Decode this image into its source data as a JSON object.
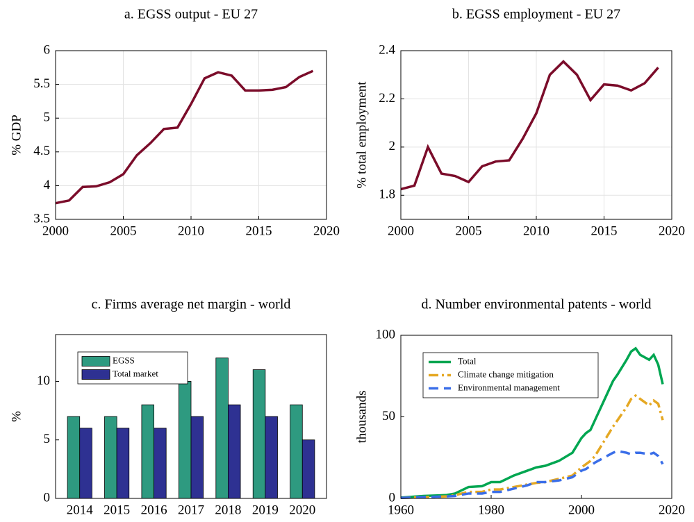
{
  "chart_data": [
    {
      "type": "line",
      "title": "a. EGSS output - EU 27",
      "y_label": "% GDP",
      "x": [
        2000,
        2001,
        2002,
        2003,
        2004,
        2005,
        2006,
        2007,
        2008,
        2009,
        2010,
        2011,
        2012,
        2013,
        2014,
        2015,
        2016,
        2017,
        2018,
        2019
      ],
      "series": [
        {
          "name": "EGSS output",
          "color": "#7b0c2a",
          "style": "solid",
          "values": [
            3.74,
            3.78,
            3.98,
            3.99,
            4.05,
            4.17,
            4.45,
            4.63,
            4.84,
            4.86,
            5.21,
            5.59,
            5.68,
            5.63,
            5.41,
            5.41,
            5.42,
            5.46,
            5.61,
            5.7
          ]
        }
      ],
      "xlim": [
        2000,
        2020
      ],
      "xticks": [
        2000,
        2005,
        2010,
        2015,
        2020
      ],
      "ylim": [
        3.5,
        6
      ],
      "yticks": [
        3.5,
        4,
        4.5,
        5,
        5.5,
        6
      ],
      "grid": true
    },
    {
      "type": "line",
      "title": "b. EGSS employment - EU 27",
      "y_label": "% total employment",
      "x": [
        2000,
        2001,
        2002,
        2003,
        2004,
        2005,
        2006,
        2007,
        2008,
        2009,
        2010,
        2011,
        2012,
        2013,
        2014,
        2015,
        2016,
        2017,
        2018,
        2019
      ],
      "series": [
        {
          "name": "EGSS employment",
          "color": "#7b0c2a",
          "style": "solid",
          "values": [
            1.825,
            1.84,
            2.0,
            1.89,
            1.88,
            1.855,
            1.92,
            1.94,
            1.945,
            2.035,
            2.14,
            2.3,
            2.355,
            2.3,
            2.195,
            2.26,
            2.255,
            2.235,
            2.265,
            2.33
          ]
        }
      ],
      "xlim": [
        2000,
        2020
      ],
      "xticks": [
        2000,
        2005,
        2010,
        2015,
        2020
      ],
      "ylim": [
        1.7,
        2.4
      ],
      "yticks": [
        1.8,
        2,
        2.2,
        2.4
      ],
      "grid": true
    },
    {
      "type": "bar",
      "title": "c. Firms average net margin - world",
      "y_label": "%",
      "categories": [
        "2014",
        "2015",
        "2016",
        "2017",
        "2018",
        "2019",
        "2020"
      ],
      "series": [
        {
          "name": "EGSS",
          "color": "#2e9a80",
          "values": [
            7,
            7,
            8,
            10,
            12,
            11,
            8
          ]
        },
        {
          "name": "Total market",
          "color": "#2e3192",
          "values": [
            6,
            6,
            6,
            7,
            8,
            7,
            5
          ]
        }
      ],
      "ylim": [
        0,
        14
      ],
      "yticks": [
        0,
        5,
        10
      ],
      "grid": false,
      "legend": "upper left"
    },
    {
      "type": "line",
      "title": "d. Number environmental patents - world",
      "y_label": "thousands",
      "x": [
        1960,
        1965,
        1970,
        1972,
        1975,
        1978,
        1980,
        1982,
        1985,
        1988,
        1990,
        1992,
        1995,
        1998,
        2000,
        2001,
        2002,
        2003,
        2005,
        2007,
        2008,
        2010,
        2011,
        2012,
        2013,
        2015,
        2016,
        2017,
        2018
      ],
      "series": [
        {
          "name": "Total",
          "color": "#00a651",
          "style": "solid",
          "values": [
            0.5,
            1.5,
            2,
            3,
            7,
            7.5,
            10,
            10,
            14,
            17,
            19,
            20,
            23,
            28,
            37,
            40,
            42,
            48,
            60,
            72,
            76,
            85,
            90,
            92,
            88,
            85,
            88,
            82,
            70
          ]
        },
        {
          "name": "Climate change mitigation",
          "color": "#e5a823",
          "style": "dashdot",
          "values": [
            0.3,
            0.7,
            1.2,
            2,
            4,
            4,
            5.5,
            5.5,
            7,
            8.5,
            9.5,
            10,
            12,
            14,
            19,
            21,
            23,
            26,
            35,
            44,
            48,
            56,
            61,
            63,
            61,
            57,
            60,
            58,
            48
          ]
        },
        {
          "name": "Environmental management",
          "color": "#3a6ee8",
          "style": "dashed",
          "values": [
            0.3,
            0.8,
            1.2,
            1.5,
            3,
            3,
            4,
            4,
            6,
            8,
            10,
            10,
            11,
            13,
            17,
            18,
            20,
            22,
            25,
            28,
            29,
            28,
            27,
            28,
            28,
            27,
            28,
            26,
            21
          ]
        }
      ],
      "xlim": [
        1960,
        2020
      ],
      "xticks": [
        1960,
        1980,
        2000,
        2020
      ],
      "ylim": [
        0,
        100
      ],
      "yticks": [
        0,
        50,
        100
      ],
      "grid": false,
      "legend": "upper left"
    }
  ]
}
